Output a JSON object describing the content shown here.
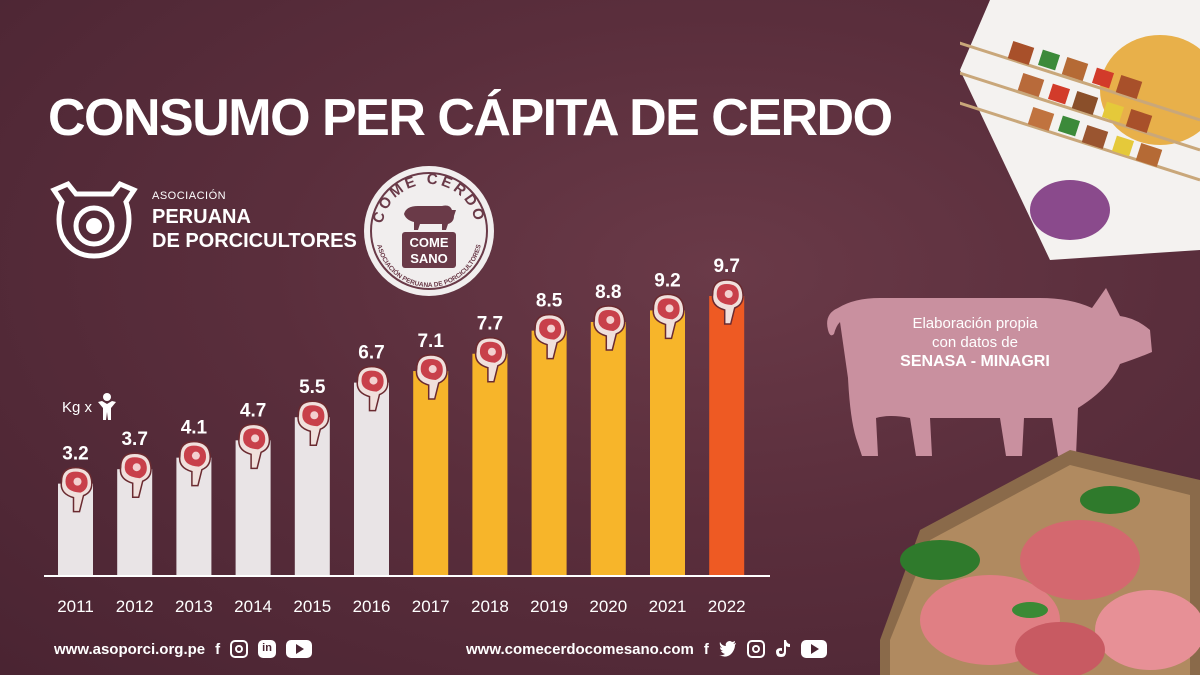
{
  "title": "CONSUMO PER CÁPITA DE CERDO",
  "association": {
    "small": "ASOCIACIÓN",
    "line1": "PERUANA",
    "line2": "DE PORCICULTORES"
  },
  "badge": {
    "arc_text": "COME CERDO",
    "center_text_1": "COME",
    "center_text_2": "SANO",
    "ring_text": "ASOCIACIÓN PERUANA DE PORCICULTORES"
  },
  "unit_label": "Kg x",
  "credit": {
    "line1": "Elaboración propia",
    "line2": "con datos de",
    "source": "SENASA - MINAGRI"
  },
  "footer": {
    "left_url": "www.asoporci.org.pe",
    "right_url": "www.comecerdocomesano.com"
  },
  "colors": {
    "background": "#5a2e3c",
    "bar_early": "#e9e4e6",
    "bar_mid": "#f7b52a",
    "bar_last": "#ee5a23",
    "pig": "#c9909f"
  },
  "icons": [
    "pig-logo-icon",
    "person-icon",
    "meat-icon",
    "facebook-icon",
    "instagram-icon",
    "linkedin-icon",
    "youtube-icon",
    "twitter-icon",
    "tiktok-icon"
  ],
  "chart_data": {
    "type": "bar",
    "categories": [
      "2011",
      "2012",
      "2013",
      "2014",
      "2015",
      "2016",
      "2017",
      "2018",
      "2019",
      "2020",
      "2021",
      "2022"
    ],
    "values": [
      3.2,
      3.7,
      4.1,
      4.7,
      5.5,
      6.7,
      7.1,
      7.7,
      8.5,
      8.8,
      9.2,
      9.7
    ],
    "value_labels": [
      "3.2",
      "3.7",
      "4.1",
      "4.7",
      "5.5",
      "6.7",
      "7.1",
      "7.7",
      "8.5",
      "8.8",
      "9.2",
      "9.7"
    ],
    "bar_colors": [
      "#e9e4e6",
      "#e9e4e6",
      "#e9e4e6",
      "#e9e4e6",
      "#e9e4e6",
      "#e9e4e6",
      "#f7b52a",
      "#f7b52a",
      "#f7b52a",
      "#f7b52a",
      "#f7b52a",
      "#ee5a23"
    ],
    "title": "CONSUMO PER CÁPITA DE CERDO",
    "ylabel": "Kg x",
    "ylim": [
      0,
      9.7
    ],
    "grid": false
  }
}
